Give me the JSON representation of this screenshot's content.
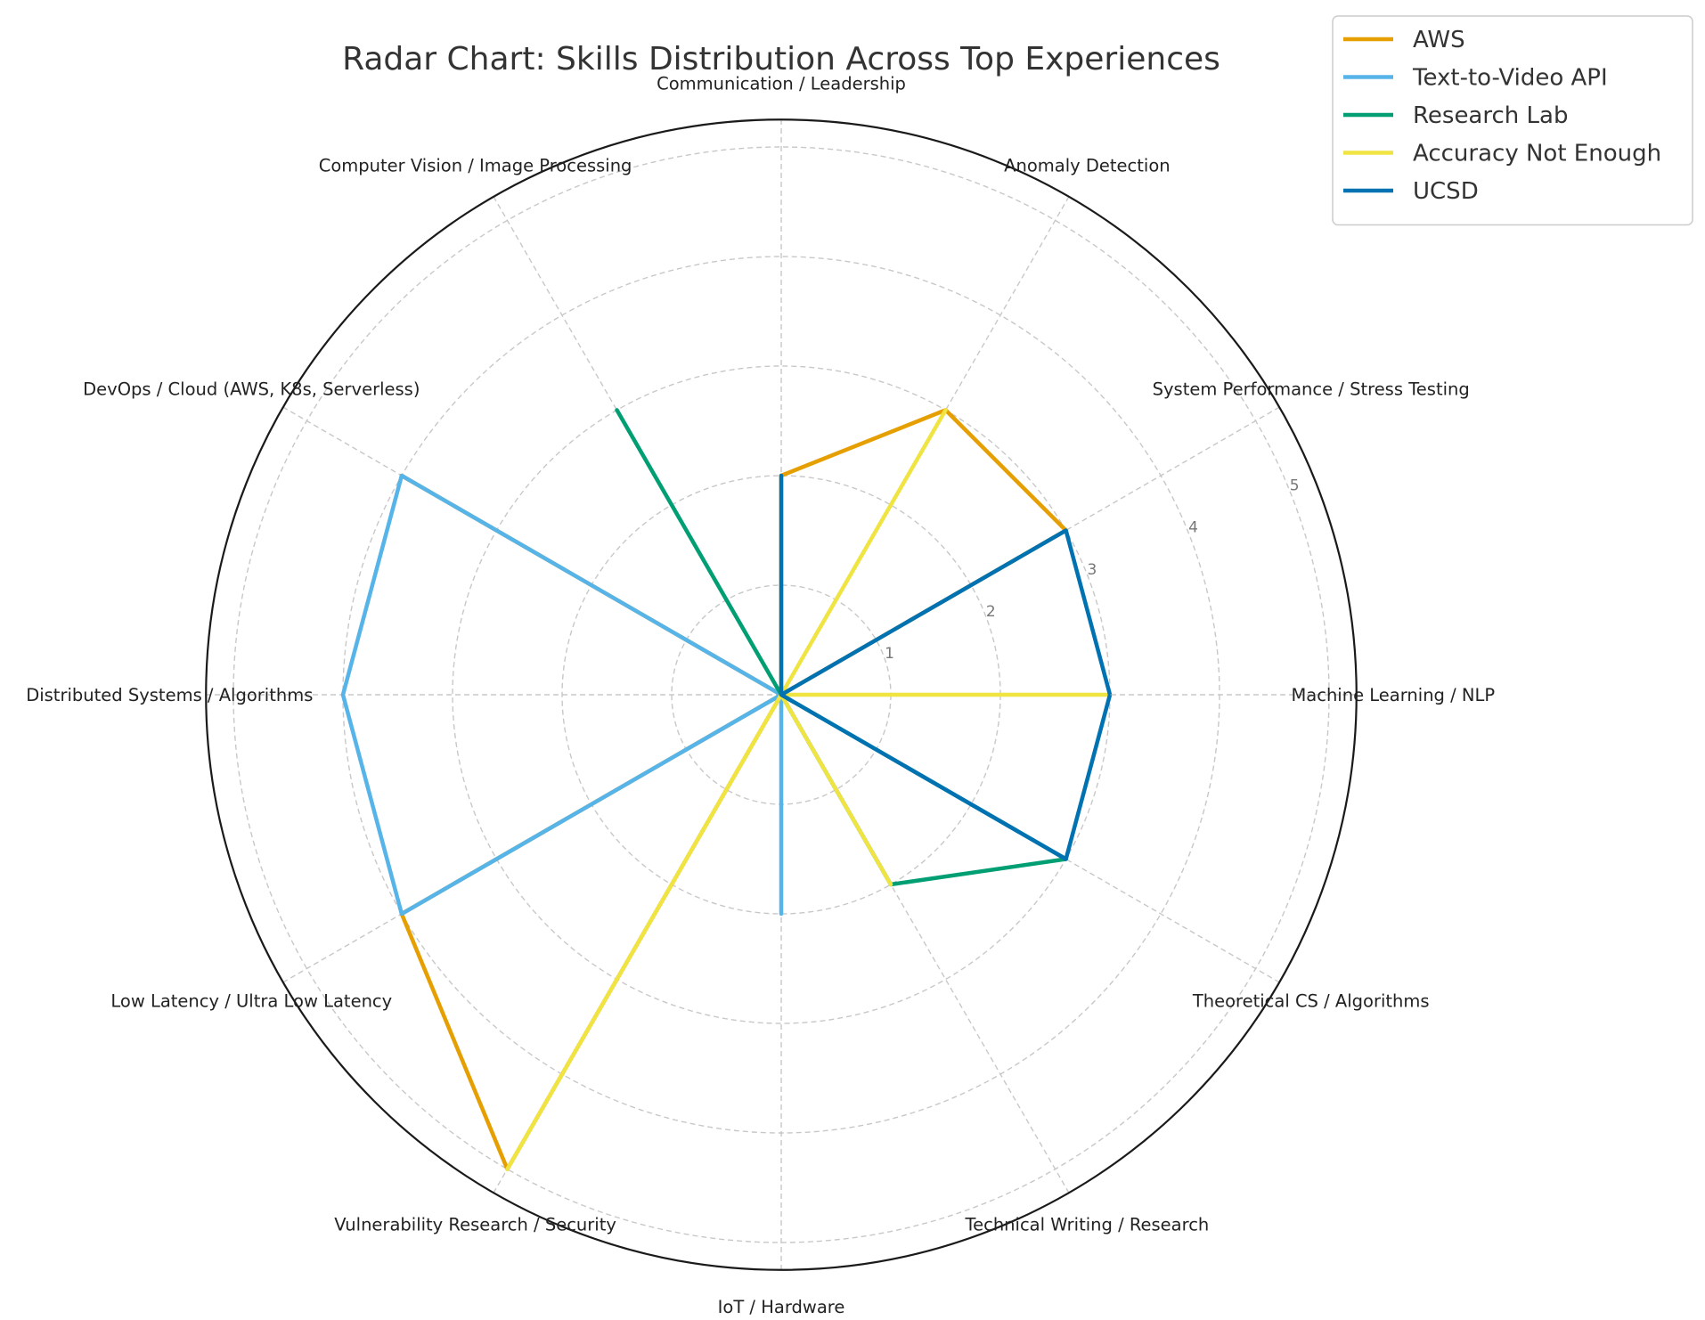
{
  "chart_data": {
    "type": "radar",
    "title": "Radar Chart: Skills Distribution Across Top Experiences",
    "categories": [
      "Machine Learning / NLP",
      "System Performance / Stress Testing",
      "Anomaly Detection",
      "Communication / Leadership",
      "Computer Vision / Image Processing",
      "DevOps / Cloud (AWS, K8s, Serverless)",
      "Distributed Systems / Algorithms",
      "Low Latency / Ultra Low Latency",
      "Vulnerability Research / Security",
      "IoT / Hardware",
      "Technical Writing / Research",
      "Theoretical CS / Algorithms"
    ],
    "radial_ticks": [
      1,
      2,
      3,
      4,
      5
    ],
    "rlim": [
      0,
      5.25
    ],
    "grid": true,
    "legend_position": "top-right",
    "series": [
      {
        "name": "AWS",
        "color": "#E69F00",
        "values": [
          0,
          3,
          3,
          2,
          0,
          4,
          0,
          4,
          5,
          0,
          0,
          0
        ]
      },
      {
        "name": "Text-to-Video API",
        "color": "#56B4E9",
        "values": [
          0,
          0,
          0,
          0,
          0,
          4,
          4,
          4,
          0,
          2,
          0,
          0
        ]
      },
      {
        "name": "Research Lab",
        "color": "#009E73",
        "values": [
          0,
          0,
          0,
          0,
          3,
          0,
          0,
          0,
          0,
          0,
          2,
          3
        ]
      },
      {
        "name": "Accuracy Not Enough",
        "color": "#F0E442",
        "values": [
          3,
          0,
          3,
          0,
          0,
          0,
          0,
          0,
          5,
          0,
          2,
          0
        ]
      },
      {
        "name": "UCSD",
        "color": "#0072B2",
        "values": [
          3,
          3,
          0,
          2,
          0,
          0,
          0,
          0,
          0,
          0,
          0,
          3
        ]
      }
    ]
  }
}
